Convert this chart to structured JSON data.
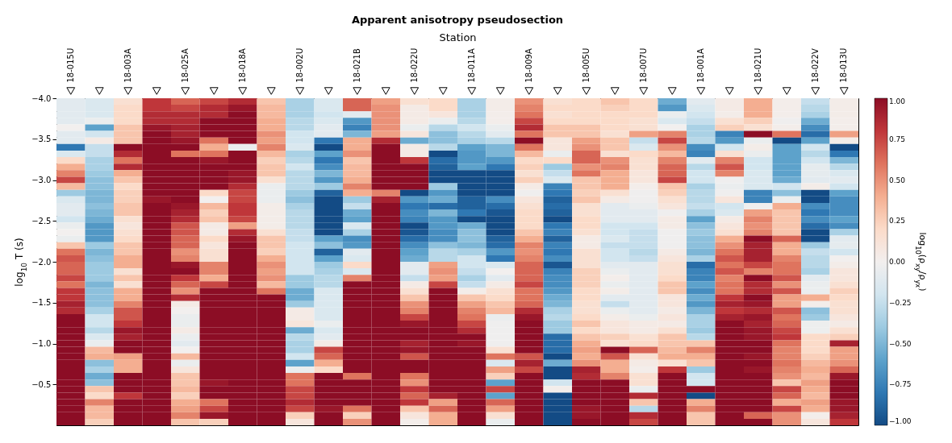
{
  "chart_data": {
    "type": "heatmap",
    "title": "Apparent anisotropy pseudosection",
    "xlabel": "Station",
    "ylabel": "log$_{10}$ T (s)",
    "clabel": "log$_{10}$(ρ$_{xy}$/ρ$_{yx}$)",
    "categories": [
      "18-015U",
      null,
      "18-003A",
      null,
      "18-025A",
      null,
      "18-018A",
      null,
      "18-002U",
      null,
      "18-021B",
      null,
      "18-022U",
      null,
      "18-011A",
      null,
      "18-009A",
      null,
      "18-005U",
      null,
      "18-007U",
      null,
      "18-001A",
      null,
      "18-021U",
      null,
      "18-022V",
      "18-013U"
    ],
    "ylim": [
      0,
      -4
    ],
    "yticks": [
      {
        "value": -4,
        "label": "−4.0"
      },
      {
        "value": -3.5,
        "label": "−3.5"
      },
      {
        "value": -3,
        "label": "−3.0"
      },
      {
        "value": -2.5,
        "label": "−2.5"
      },
      {
        "value": -2,
        "label": "−2.0"
      },
      {
        "value": -1.5,
        "label": "−1.5"
      },
      {
        "value": -1,
        "label": "−1.0"
      },
      {
        "value": -0.5,
        "label": "−0.5"
      }
    ],
    "clim": [
      -1,
      1
    ],
    "cticks": [
      {
        "value": -1,
        "label": "−1.00"
      },
      {
        "value": -0.75,
        "label": "−0.75"
      },
      {
        "value": -0.5,
        "label": "−0.50"
      },
      {
        "value": -0.25,
        "label": "−0.25"
      },
      {
        "value": 0,
        "label": "0.00"
      },
      {
        "value": 0.25,
        "label": "0.25"
      },
      {
        "value": 0.5,
        "label": "0.50"
      },
      {
        "value": 0.75,
        "label": "0.75"
      },
      {
        "value": 1,
        "label": "1.00"
      }
    ],
    "cells": [
      [
        -0.1,
        -0.15,
        0.15,
        0.8,
        0.65,
        0.75,
        0.85,
        0.3,
        -0.35,
        -0.15,
        0.65,
        0.45,
        0.15,
        0.2,
        -0.35,
        0.03,
        0.5,
        0.15,
        0.2,
        0.3,
        0.2,
        -0.55,
        -0.1,
        0.05,
        0.4,
        0.02,
        -0.25,
        0.03
      ],
      [
        -0.1,
        -0.15,
        0.2,
        0.8,
        0.75,
        0.85,
        0.95,
        0.35,
        -0.35,
        -0.15,
        0.65,
        0.5,
        0.05,
        0.2,
        -0.35,
        0.03,
        0.55,
        0.2,
        0.2,
        0.25,
        0.2,
        -0.65,
        -0.15,
        0.05,
        0.4,
        0.02,
        -0.3,
        0.03
      ],
      [
        -0.1,
        -0.15,
        0.2,
        0.85,
        0.85,
        0.85,
        1,
        0.35,
        -0.35,
        -0.2,
        -0.1,
        0.5,
        0.05,
        0.1,
        -0.35,
        0.02,
        0.6,
        0.15,
        0.2,
        0.2,
        0.2,
        -0.05,
        -0.2,
        0.03,
        0.4,
        0.02,
        -0.35,
        0.03
      ],
      [
        -0.1,
        -0.05,
        0.2,
        0.85,
        0.85,
        1,
        1,
        0.4,
        -0.3,
        -0.15,
        -0.65,
        0.5,
        0.05,
        -0.05,
        -0.3,
        0.02,
        0.75,
        0.2,
        0.2,
        0.2,
        0.15,
        -0.15,
        -0.25,
        0.15,
        0.25,
        -0.02,
        -0.55,
        0.02
      ],
      [
        0,
        -0.6,
        0.3,
        0.95,
        0.9,
        1,
        1,
        0.4,
        -0.3,
        -0.1,
        -0.75,
        0.5,
        -0.05,
        -0.3,
        -0.2,
        -0.05,
        0.85,
        0.3,
        0.3,
        0.2,
        0.15,
        0,
        -0.35,
        0.25,
        0.15,
        0.02,
        -0.7,
        0.02
      ],
      [
        -0.1,
        -0.2,
        0.3,
        1,
        0.9,
        1,
        1,
        0.5,
        -0.2,
        -0.1,
        -0.5,
        0.45,
        0.1,
        -0.45,
        -0.3,
        -0.1,
        0.6,
        0.3,
        0.3,
        0.15,
        0.45,
        0.55,
        -0.35,
        -0.75,
        1,
        0.6,
        -0.85,
        0.45
      ],
      [
        -0.1,
        0.05,
        0.3,
        1,
        0.95,
        0.6,
        1,
        0.45,
        -0.2,
        -0.8,
        0.4,
        0.85,
        -0.55,
        -0.45,
        -0.35,
        -0.3,
        1,
        0.1,
        0.45,
        0.3,
        -0.25,
        0.75,
        -0.3,
        -0.65,
        -0.05,
        -1,
        -0.6,
        0.03
      ],
      [
        -0.8,
        -0.25,
        1,
        1,
        1,
        0.4,
        -0.05,
        0.55,
        -0.15,
        -1,
        0.4,
        1,
        0.05,
        -0.3,
        -0.6,
        -0.5,
        0.6,
        0.1,
        0.5,
        0.3,
        -0.15,
        0.5,
        -0.7,
        -0.2,
        0.03,
        -0.6,
        -0.2,
        -1
      ],
      [
        -0.15,
        -0.25,
        0.85,
        1,
        0.6,
        0.6,
        1,
        0.35,
        -0.35,
        -0.6,
        0.5,
        1,
        0.05,
        -1,
        -0.65,
        -0.5,
        0.35,
        -0.05,
        0.65,
        0.15,
        0.2,
        0.35,
        -0.75,
        0.15,
        -0.05,
        -0.6,
        -0.3,
        -0.8
      ],
      [
        0.2,
        -0.35,
        0.6,
        1,
        1,
        0.95,
        1,
        0.25,
        -0.3,
        -0.8,
        0.3,
        1,
        0.8,
        -0.85,
        -0.65,
        -0.65,
        0.2,
        0.2,
        0.65,
        0.5,
        0.15,
        0.55,
        -0.1,
        0.55,
        -0.2,
        -0.6,
        -0.2,
        -0.5
      ],
      [
        0.4,
        -0.35,
        0.85,
        1,
        1,
        1,
        1,
        0.3,
        -0.2,
        -0.7,
        0.35,
        1,
        1,
        -0.9,
        -0.6,
        -0.8,
        0.25,
        -0.4,
        0.5,
        0.55,
        0.15,
        0.65,
        -0.3,
        0.7,
        -0.2,
        -0.6,
        -0.08,
        -0.3
      ],
      [
        0.55,
        -0.4,
        0.4,
        1,
        1,
        1,
        0.95,
        0.3,
        -0.3,
        -0.5,
        0.35,
        1,
        1,
        -1,
        -1,
        -1,
        0.15,
        -0.25,
        0.6,
        0.4,
        0.1,
        0.65,
        -0.2,
        0.55,
        -0.15,
        -0.6,
        -0.08,
        -0.15
      ],
      [
        0.75,
        -0.45,
        0.3,
        1,
        1,
        1,
        0.95,
        0.15,
        -0.3,
        -0.65,
        0.4,
        1,
        1,
        -1,
        -1,
        -1,
        0.25,
        -0.15,
        0.3,
        0.4,
        0.1,
        0.75,
        -0.2,
        -0.02,
        -0.15,
        -0.55,
        -0.1,
        -0.1
      ],
      [
        0.35,
        -0.45,
        0.2,
        1,
        1,
        1,
        0.85,
        -0.05,
        -0.3,
        -0.4,
        0.55,
        1,
        1,
        -0.4,
        -1,
        -1,
        0.05,
        -0.75,
        0.3,
        0.4,
        0.02,
        0.3,
        -0.35,
        -0.05,
        -0.15,
        -0.2,
        0.03,
        -0.2
      ],
      [
        -0.4,
        -0.5,
        0.25,
        1,
        1,
        0.2,
        0.75,
        -0.05,
        -0.4,
        -0.9,
        0.4,
        0.55,
        -1,
        -0.65,
        -1,
        -1,
        -0.02,
        -0.8,
        0.25,
        0.15,
        -0.02,
        0.25,
        -0.3,
        -0.02,
        -0.75,
        -0.45,
        -1,
        -0.6
      ],
      [
        -0.15,
        -0.5,
        0.25,
        0.95,
        1,
        0,
        0.75,
        -0.05,
        -0.45,
        -1,
        -0.4,
        0.9,
        -0.65,
        -0.55,
        -0.9,
        -0.7,
        0.1,
        -0.9,
        0.3,
        0.05,
        -0.02,
        0.15,
        -0.3,
        0.1,
        -0.75,
        -0.05,
        -1,
        -0.7
      ],
      [
        -0.1,
        -0.45,
        0.3,
        1,
        0.95,
        0.35,
        0.8,
        0.03,
        -0.35,
        -1,
        -0.25,
        1,
        -0.8,
        -0.85,
        -0.9,
        -0.85,
        0.15,
        -0.85,
        0.15,
        -0.1,
        -0.05,
        0.1,
        -0.25,
        -0.2,
        -0.02,
        0.4,
        -0.7,
        -0.7
      ],
      [
        -0.1,
        -0.5,
        0.3,
        1,
        0.9,
        0.25,
        0.8,
        0.03,
        -0.3,
        -1,
        -0.55,
        1,
        -0.7,
        -0.5,
        -0.8,
        -0.95,
        0.2,
        -0.9,
        0.15,
        -0.1,
        -0.1,
        -0.02,
        -0.35,
        -0.15,
        0.45,
        0.3,
        -0.8,
        -0.7
      ],
      [
        -0.2,
        -0.55,
        0.15,
        1,
        0.85,
        0.3,
        0.75,
        0.03,
        -0.3,
        -1,
        -0.6,
        1,
        -0.75,
        -0.65,
        -1,
        -1,
        0.2,
        -1,
        0.2,
        -0.1,
        -0.1,
        0.05,
        -0.6,
        0.05,
        0.55,
        0.3,
        -0.7,
        -0.6
      ],
      [
        -0.05,
        -0.65,
        0.1,
        1,
        0.7,
        0.05,
        0.45,
        0.03,
        -0.3,
        -1,
        -0.15,
        1,
        -1,
        -0.65,
        -0.55,
        -1,
        0.2,
        -0.8,
        0.2,
        -0.2,
        -0.2,
        0.05,
        -0.45,
        0.1,
        0.5,
        0.3,
        -0.85,
        -0.7
      ],
      [
        0,
        -0.65,
        0.15,
        1,
        0.7,
        0.05,
        0.85,
        0.15,
        -0.25,
        -1,
        -0.35,
        1,
        -0.95,
        -0.7,
        -0.45,
        -1,
        0.3,
        -0.75,
        0.15,
        -0.2,
        -0.25,
        -0.02,
        -0.4,
        0.15,
        0.55,
        0.3,
        -1,
        -0.35
      ],
      [
        -0.05,
        -0.65,
        0.2,
        1,
        0.65,
        0.2,
        0.95,
        0.3,
        -0.25,
        -0.6,
        -0.7,
        1,
        -0.85,
        -0.7,
        -0.45,
        -0.9,
        0.4,
        -0.9,
        0.05,
        -0.15,
        -0.25,
        -0.02,
        -0.45,
        0.4,
        1,
        0.65,
        -1,
        -0.1
      ],
      [
        0.3,
        -0.4,
        0.3,
        1,
        0.65,
        0.1,
        1,
        0.3,
        -0.2,
        -0.45,
        -0.65,
        1,
        -0.7,
        -0.45,
        -0.5,
        -0.85,
        0.55,
        -0.75,
        0.05,
        -0.25,
        -0.25,
        -0.02,
        -0.45,
        0.5,
        0.9,
        0.4,
        -0.4,
        -0.08
      ],
      [
        0.6,
        -0.5,
        0.3,
        1,
        0.5,
        0.15,
        1,
        0.25,
        -0.2,
        -0.9,
        -0.1,
        1,
        -0.6,
        -0.3,
        -0.35,
        -0.65,
        0.5,
        -0.8,
        0.15,
        -0.2,
        -0.3,
        0.05,
        -0.5,
        0.6,
        0.9,
        0.4,
        -0.25,
        -0.2
      ],
      [
        0.7,
        -0.45,
        0.4,
        1,
        0.55,
        0.15,
        1,
        0.4,
        -0.2,
        -0.6,
        -0.15,
        1,
        -0.55,
        -0.3,
        -0.2,
        -0.8,
        0.55,
        -0.7,
        0.15,
        -0.2,
        -0.25,
        0.1,
        -0.35,
        0.7,
        0.9,
        0.55,
        -0.3,
        0
      ],
      [
        0.65,
        -0.4,
        0.4,
        1,
        0.95,
        0.55,
        1,
        0.5,
        -0.2,
        -0.4,
        0.2,
        1,
        -0.1,
        0.45,
        -0.2,
        -0.15,
        0.65,
        -0.95,
        0.15,
        -0.1,
        -0.1,
        0.15,
        -0.85,
        0.6,
        0.75,
        0.6,
        -0.3,
        0.03
      ],
      [
        0.65,
        -0.4,
        0.15,
        1,
        1,
        0.55,
        1,
        0.45,
        -0.2,
        -0.35,
        -0.15,
        1,
        -0.1,
        0.5,
        -0.25,
        0,
        0.65,
        -0.75,
        0.25,
        -0.05,
        -0.1,
        0.15,
        -0.75,
        0.7,
        0.55,
        0.6,
        -0.35,
        0.1
      ],
      [
        0.75,
        -0.4,
        0.3,
        1,
        0.8,
        0.4,
        1,
        0.5,
        -0.4,
        -0.3,
        0.55,
        1,
        -0.25,
        0.45,
        -0.35,
        -0.1,
        0.65,
        -0.7,
        0.25,
        0.02,
        -0.1,
        0.2,
        -0.75,
        0.55,
        1,
        0.7,
        -0.1,
        0.1
      ],
      [
        0.6,
        -0.5,
        0.15,
        1,
        0.65,
        0.75,
        1,
        0.35,
        -0.4,
        -0.3,
        1,
        1,
        0.05,
        0.75,
        -0.25,
        0.05,
        0.75,
        -0.7,
        0.25,
        -0.05,
        -0.1,
        0.3,
        -0.6,
        0.6,
        0.85,
        0.5,
        -0.05,
        0.15
      ],
      [
        0.8,
        -0.45,
        0.4,
        1,
        0.5,
        1,
        1,
        0.6,
        -0.55,
        -0.15,
        1,
        1,
        0.15,
        1,
        0.03,
        0.15,
        0.6,
        -0.65,
        0.2,
        0.03,
        -0.1,
        0.3,
        -0.7,
        0.6,
        0.85,
        0.7,
        -0.05,
        0.25
      ],
      [
        0.8,
        -0.45,
        0.4,
        1,
        0.85,
        1,
        1,
        1,
        -0.55,
        -0.15,
        1,
        1,
        0.3,
        1,
        0.3,
        0.2,
        0.6,
        -0.55,
        0.2,
        -0.1,
        -0.1,
        0.1,
        -0.55,
        0.8,
        1,
        0.45,
        0.4,
        0.2
      ],
      [
        0.9,
        -0.45,
        0.55,
        1,
        0.05,
        1,
        1,
        1,
        -0.4,
        -0.15,
        1,
        1,
        0.5,
        1,
        0.45,
        0.3,
        0.65,
        -0.5,
        0.15,
        -0.25,
        -0.1,
        0.1,
        -0.65,
        0.9,
        0.95,
        0.45,
        0.02,
        0.15
      ],
      [
        0.85,
        -0.35,
        0.7,
        1,
        0,
        1,
        1,
        1,
        0.05,
        -0.15,
        1,
        1,
        0.55,
        1,
        0.55,
        0.35,
        0.85,
        -0.35,
        0.15,
        -0.05,
        -0.1,
        0.05,
        -0.5,
        0.8,
        0.85,
        0.7,
        -0.45,
        0.15
      ],
      [
        1,
        -0.2,
        0.7,
        1,
        -0.05,
        1,
        1,
        1,
        0.05,
        -0.15,
        1,
        1,
        0.75,
        1,
        0.6,
        -0.05,
        0.95,
        -0.3,
        0.2,
        0.03,
        -0.05,
        0.1,
        -0.35,
        0.9,
        0.95,
        0.6,
        -0.4,
        0.1
      ],
      [
        1,
        -0.2,
        0.8,
        1,
        -0.05,
        1,
        1,
        1,
        0.1,
        -0.05,
        1,
        1,
        0.95,
        1,
        0.75,
        -0.02,
        1,
        -0.4,
        0.3,
        0.1,
        0.05,
        0.05,
        -0.35,
        1,
        0.9,
        0.65,
        -0.03,
        0.05
      ],
      [
        1,
        -0.3,
        0.95,
        1,
        0.05,
        1,
        1,
        1,
        -0.55,
        -0.15,
        1,
        1,
        1,
        1,
        0.85,
        -0.02,
        1,
        -0.4,
        0.2,
        0.1,
        0.05,
        0.15,
        -0.4,
        1,
        0.95,
        0.75,
        -0.03,
        0.15
      ],
      [
        1,
        -0.15,
        0.9,
        1,
        -0.05,
        1,
        1,
        1,
        -0.3,
        -0.1,
        1,
        1,
        1,
        1,
        1,
        -0.02,
        1,
        -0.85,
        0.3,
        0.25,
        0.15,
        0.3,
        -0.3,
        1,
        0.95,
        0.8,
        0.2,
        0.25
      ],
      [
        1,
        -0.05,
        1,
        1,
        -0.1,
        1,
        1,
        1,
        -0.35,
        0.05,
        1,
        1,
        0.9,
        1,
        0.95,
        -0.02,
        1,
        -0.85,
        0.4,
        0.15,
        0.2,
        0.3,
        0.3,
        1,
        1,
        0.6,
        0.2,
        0.9
      ],
      [
        1,
        0.35,
        1,
        1,
        0,
        1,
        1,
        1,
        -0.35,
        0.75,
        1,
        1,
        0.95,
        1,
        1,
        0.15,
        1,
        -0.85,
        0.45,
        1,
        0.65,
        0.35,
        0.55,
        1,
        1,
        0.55,
        0.2,
        0.45
      ],
      [
        1,
        0.4,
        0.45,
        1,
        0.35,
        1,
        1,
        1,
        -0.2,
        0.65,
        1,
        1,
        0.7,
        1,
        1,
        0.6,
        0.7,
        -1,
        0.4,
        0.7,
        0.15,
        0.4,
        0.4,
        1,
        0.95,
        0.55,
        0.25,
        0.45
      ],
      [
        1,
        -0.45,
        0.4,
        1,
        -0.05,
        1,
        1,
        1,
        -0.6,
        0.4,
        1,
        1,
        1,
        1,
        1,
        -0.15,
        0.9,
        -0.55,
        0.5,
        0.4,
        0.05,
        0.15,
        0.3,
        1,
        1,
        0.6,
        0.35,
        0.5
      ],
      [
        1,
        -0.35,
        0.4,
        1,
        0.1,
        1,
        1,
        1,
        -0.05,
        0.2,
        1,
        1,
        1,
        1,
        1,
        0.45,
        0.75,
        -1,
        0.9,
        0.4,
        0.02,
        0.8,
        -0.4,
        1,
        0.95,
        0.55,
        0.4,
        0.65
      ],
      [
        1,
        -0.55,
        1,
        1,
        0.3,
        1,
        1,
        1,
        0.6,
        1,
        0.6,
        1,
        0.6,
        1,
        1,
        0.25,
        1,
        -1,
        0.85,
        0.55,
        0.15,
        1,
        -0.2,
        1,
        1,
        0.5,
        0.35,
        0.95
      ],
      [
        1,
        -0.45,
        1,
        1,
        0.3,
        0.95,
        1,
        1,
        0.6,
        1,
        1,
        1,
        0.5,
        1,
        1,
        -0.6,
        1,
        -0.2,
        1,
        1,
        0.15,
        1,
        -0.2,
        1,
        1,
        0.3,
        0.45,
        1
      ],
      [
        1,
        0.3,
        1,
        1,
        0.35,
        1,
        1,
        1,
        0.75,
        1,
        1,
        1,
        0.8,
        1,
        1,
        0.75,
        1,
        0.02,
        1,
        1,
        -0.05,
        1,
        1,
        1,
        1,
        0.75,
        0.4,
        1
      ],
      [
        1,
        0.2,
        0.8,
        1,
        0.25,
        1,
        1,
        1,
        0.75,
        1,
        1,
        1,
        0.65,
        0.9,
        1,
        -0.6,
        1,
        -1,
        1,
        1,
        0.85,
        1,
        -1,
        1,
        1,
        0.65,
        0.35,
        1
      ],
      [
        1,
        0.55,
        1,
        1,
        0.4,
        0.6,
        1,
        1,
        0.85,
        1,
        1,
        1,
        0.8,
        0.45,
        1,
        0.65,
        1,
        -1,
        1,
        1,
        0.3,
        1,
        0.4,
        1,
        1,
        0.4,
        0.45,
        0.95
      ],
      [
        1,
        0.35,
        1,
        1,
        0.45,
        0.75,
        1,
        1,
        0.75,
        0.95,
        0.6,
        1,
        0.3,
        0.65,
        1,
        0.45,
        1,
        -1,
        0.95,
        1,
        -0.3,
        1,
        0.55,
        1,
        1,
        0.75,
        0.4,
        0.95
      ],
      [
        1,
        0.35,
        1,
        1,
        0.55,
        0.95,
        1,
        1,
        0.25,
        1,
        0.25,
        1,
        0.1,
        0.4,
        1,
        0.15,
        1,
        -1,
        0.95,
        1,
        0.85,
        1,
        0.3,
        1,
        0.65,
        0.5,
        0.02,
        0.9
      ],
      [
        1,
        0.25,
        1,
        1,
        0.3,
        0.25,
        1,
        1,
        0.1,
        1,
        0.5,
        1,
        0.02,
        0.4,
        1,
        -0.05,
        1,
        -1,
        1,
        1,
        0.75,
        1,
        0.3,
        1,
        1,
        0.5,
        0.1,
        0.8
      ]
    ]
  }
}
